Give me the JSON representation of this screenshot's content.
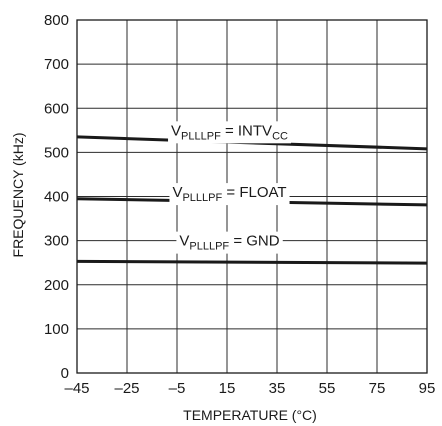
{
  "chart_data": {
    "type": "line",
    "title": "",
    "xlabel": "TEMPERATURE (°C)",
    "ylabel": "FREQUENCY (kHz)",
    "xlim": [
      -45,
      95
    ],
    "ylim": [
      0,
      800
    ],
    "x_ticks": [
      -45,
      -25,
      -5,
      15,
      35,
      55,
      75,
      95
    ],
    "x_tick_labels": [
      "–45",
      "–25",
      "–5",
      "15",
      "35",
      "55",
      "75",
      "95"
    ],
    "y_ticks": [
      0,
      100,
      200,
      300,
      400,
      500,
      600,
      700,
      800
    ],
    "y_tick_labels": [
      "0",
      "100",
      "200",
      "300",
      "400",
      "500",
      "600",
      "700",
      "800"
    ],
    "grid": true,
    "series": [
      {
        "name_parts": {
          "main": "V",
          "sub": "PLLLPF",
          "mid": " = INTV",
          "sub2": "CC"
        },
        "label_at": {
          "x": 16,
          "y": 550
        },
        "x": [
          -45,
          95
        ],
        "y": [
          535,
          508
        ]
      },
      {
        "name_parts": {
          "main": "V",
          "sub": "PLLLPF",
          "mid": " = FLOAT",
          "sub2": ""
        },
        "label_at": {
          "x": 16,
          "y": 410
        },
        "x": [
          -45,
          95
        ],
        "y": [
          395,
          381
        ]
      },
      {
        "name_parts": {
          "main": "V",
          "sub": "PLLLPF",
          "mid": " = GND",
          "sub2": ""
        },
        "label_at": {
          "x": 16,
          "y": 300
        },
        "x": [
          -45,
          95
        ],
        "y": [
          253,
          249
        ]
      }
    ]
  }
}
